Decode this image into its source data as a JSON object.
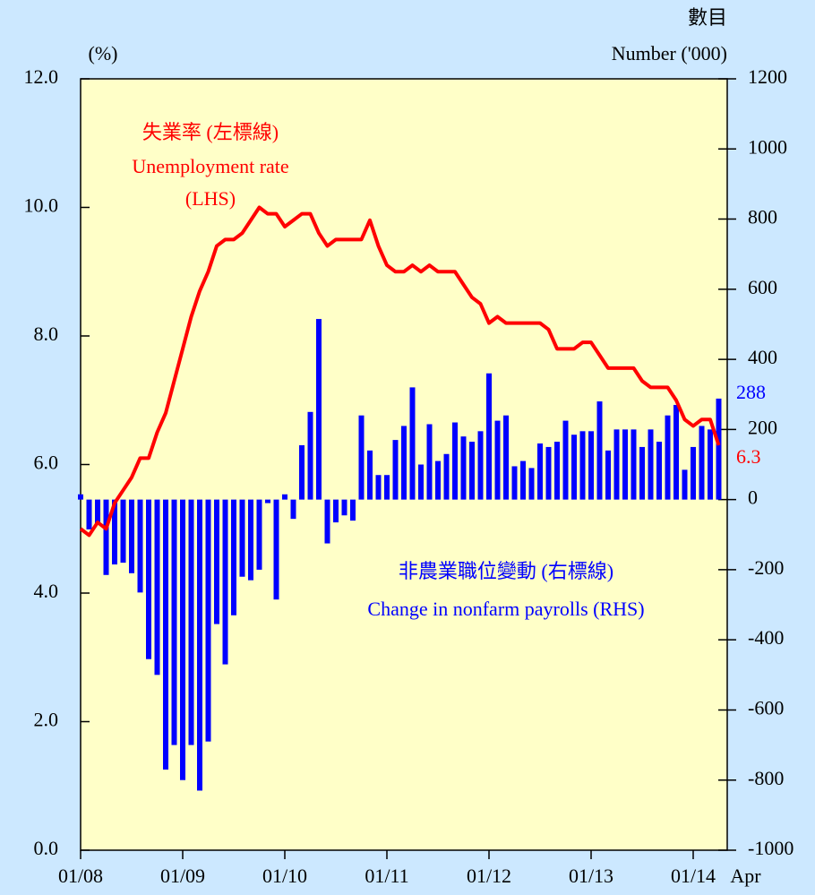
{
  "chart_data": {
    "type": "bar-line",
    "categories": [
      "01/08",
      null,
      null,
      null,
      null,
      null,
      null,
      null,
      null,
      null,
      null,
      null,
      "01/09",
      null,
      null,
      null,
      null,
      null,
      null,
      null,
      null,
      null,
      null,
      null,
      "01/10",
      null,
      null,
      null,
      null,
      null,
      null,
      null,
      null,
      null,
      null,
      null,
      "01/11",
      null,
      null,
      null,
      null,
      null,
      null,
      null,
      null,
      null,
      null,
      null,
      "01/12",
      null,
      null,
      null,
      null,
      null,
      null,
      null,
      null,
      null,
      null,
      null,
      "01/13",
      null,
      null,
      null,
      null,
      null,
      null,
      null,
      null,
      null,
      null,
      null,
      "01/14",
      null,
      null,
      "Apr"
    ],
    "ylabel": "(%)",
    "y2label": [
      "數目",
      "Number ('000)"
    ],
    "ylim": [
      0,
      12
    ],
    "yticks": [
      {
        "value": 0,
        "label": "0.0"
      },
      {
        "value": 2,
        "label": "2.0"
      },
      {
        "value": 4,
        "label": "4.0"
      },
      {
        "value": 6,
        "label": "6.0"
      },
      {
        "value": 8,
        "label": "8.0"
      },
      {
        "value": 10,
        "label": "10.0"
      },
      {
        "value": 12,
        "label": "12.0"
      }
    ],
    "y2lim": [
      -1000,
      1200
    ],
    "y2ticks": [
      -1000,
      -800,
      -600,
      -400,
      -200,
      0,
      200,
      400,
      600,
      800,
      1000,
      1200
    ],
    "series": [
      {
        "name": "Change in nonfarm payrolls (RHS)",
        "name_lines": [
          "非農業職位變動 (右標線)",
          "Change in nonfarm payrolls (RHS)"
        ],
        "kind": "bar",
        "axis": "y2",
        "color": "#0000ff",
        "values": [
          15,
          -85,
          -70,
          -215,
          -185,
          -180,
          -210,
          -265,
          -455,
          -500,
          -770,
          -700,
          -800,
          -700,
          -830,
          -690,
          -355,
          -470,
          -330,
          -220,
          -230,
          -200,
          -10,
          -285,
          15,
          -55,
          155,
          250,
          515,
          -125,
          -65,
          -45,
          -60,
          240,
          140,
          70,
          70,
          170,
          210,
          320,
          100,
          215,
          110,
          130,
          220,
          180,
          165,
          195,
          360,
          225,
          240,
          95,
          110,
          90,
          160,
          150,
          165,
          225,
          185,
          195,
          195,
          280,
          140,
          200,
          200,
          200,
          150,
          200,
          165,
          240,
          270,
          85,
          150,
          210,
          200,
          288
        ]
      },
      {
        "name": "Unemployment rate (LHS)",
        "name_lines": [
          "失業率 (左標線)",
          "Unemployment rate",
          "(LHS)"
        ],
        "kind": "line",
        "axis": "y",
        "color": "#ff0000",
        "values": [
          5.0,
          4.9,
          5.1,
          5.0,
          5.4,
          5.6,
          5.8,
          6.1,
          6.1,
          6.5,
          6.8,
          7.3,
          7.8,
          8.3,
          8.7,
          9.0,
          9.4,
          9.5,
          9.5,
          9.6,
          9.8,
          10.0,
          9.9,
          9.9,
          9.7,
          9.8,
          9.9,
          9.9,
          9.6,
          9.4,
          9.5,
          9.5,
          9.5,
          9.5,
          9.8,
          9.4,
          9.1,
          9.0,
          9.0,
          9.1,
          9.0,
          9.1,
          9.0,
          9.0,
          9.0,
          8.8,
          8.6,
          8.5,
          8.2,
          8.3,
          8.2,
          8.2,
          8.2,
          8.2,
          8.2,
          8.1,
          7.8,
          7.8,
          7.8,
          7.9,
          7.9,
          7.7,
          7.5,
          7.5,
          7.5,
          7.5,
          7.3,
          7.2,
          7.2,
          7.2,
          7.0,
          6.7,
          6.6,
          6.7,
          6.7,
          6.3
        ]
      }
    ]
  }
}
